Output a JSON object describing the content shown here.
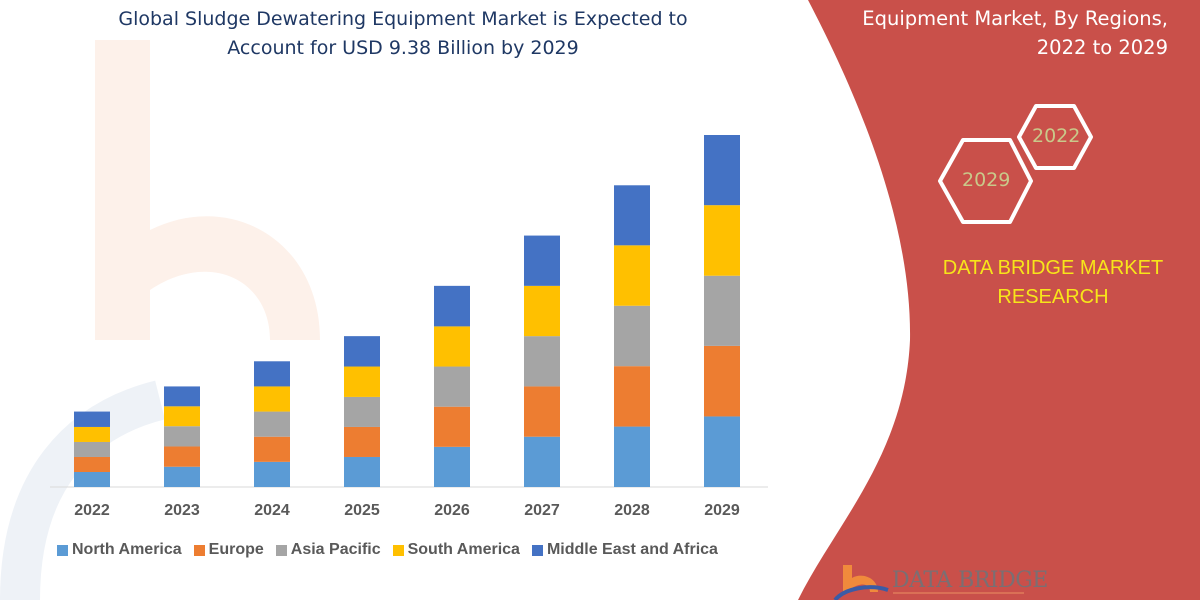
{
  "header": {
    "title_line1": "Global Sludge Dewatering Equipment Market is Expected to",
    "title_line2": "Account for USD 9.38 Billion by 2029"
  },
  "side_panel": {
    "title_line1": "Equipment Market, By Regions,",
    "title_line2": "2022 to 2029",
    "hex_start": "2022",
    "hex_end": "2029",
    "brand_line1": "DATA BRIDGE MARKET",
    "brand_line2": "RESEARCH",
    "panel_color": "#c9504a",
    "brand_color": "#f7e51a"
  },
  "logo": {
    "text": "DATA BRIDGE"
  },
  "chart_data": {
    "type": "bar",
    "stacked": true,
    "title": "Global Sludge Dewatering Equipment Market is Expected to Account for USD 9.38 Billion by 2029",
    "xlabel": "",
    "ylabel": "",
    "grid": false,
    "legend_position": "bottom",
    "ylim": [
      0,
      9.38
    ],
    "categories": [
      "2022",
      "2023",
      "2024",
      "2025",
      "2026",
      "2027",
      "2028",
      "2029"
    ],
    "series": [
      {
        "name": "North America",
        "color": "#5b9bd5",
        "values": [
          0.4,
          0.54,
          0.67,
          0.8,
          1.07,
          1.34,
          1.61,
          1.88
        ]
      },
      {
        "name": "Europe",
        "color": "#ed7d31",
        "values": [
          0.4,
          0.54,
          0.67,
          0.8,
          1.07,
          1.34,
          1.61,
          1.88
        ]
      },
      {
        "name": "Asia Pacific",
        "color": "#a5a5a5",
        "values": [
          0.4,
          0.54,
          0.67,
          0.8,
          1.07,
          1.34,
          1.61,
          1.87
        ]
      },
      {
        "name": "South America",
        "color": "#ffc000",
        "values": [
          0.4,
          0.53,
          0.67,
          0.81,
          1.07,
          1.34,
          1.61,
          1.88
        ]
      },
      {
        "name": "Middle East and Africa",
        "color": "#4472c4",
        "values": [
          0.41,
          0.53,
          0.67,
          0.81,
          1.08,
          1.34,
          1.6,
          1.87
        ]
      }
    ]
  }
}
